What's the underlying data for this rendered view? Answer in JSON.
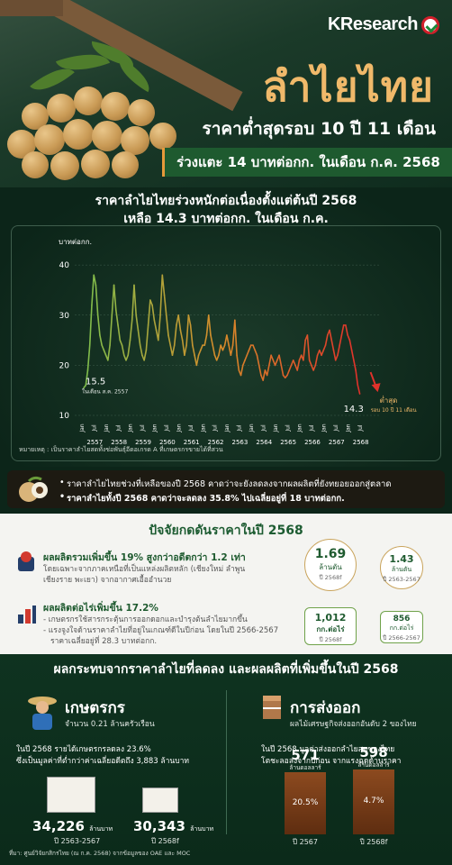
{
  "brand": {
    "name": "KResearch"
  },
  "header": {
    "title": "ลำไยไทย",
    "subtitle": "ราคาต่ำสุดรอบ 10 ปี 11 เดือน",
    "highlight": "ร่วงแตะ 14 บาทต่อกก. ในเดือน ก.ค. 2568"
  },
  "chart_section": {
    "heading_line1": "ราคาลำไยไทยร่วงหนักต่อเนื่องตั้งแต่ต้นปี 2568",
    "heading_line2": "เหลือ 14.3 บาทต่อกก. ในเดือน ก.ค.",
    "footnote": "หมายเหตุ : เป็นราคาลำไยสดทั้งช่อพันธุ์อีดอเกรด A ที่เกษตรกรขายได้ที่สวน"
  },
  "chart_data": {
    "type": "line",
    "ylabel": "บาทต่อกก.",
    "ylim": [
      10,
      42
    ],
    "yticks": [
      10,
      20,
      30,
      40
    ],
    "x_tick_labels": [
      "Jan",
      "Jul",
      "Jan",
      "Jul",
      "Jan",
      "Jul",
      "Jan",
      "Jul",
      "Jan",
      "Jul",
      "Jan",
      "Jul",
      "Jan",
      "Jul",
      "Jan",
      "Jul",
      "Jan",
      "Jul",
      "Jan",
      "Jul",
      "Jan",
      "Jul",
      "Jan",
      "Jul"
    ],
    "year_labels": [
      "2557",
      "2558",
      "2559",
      "2560",
      "2561",
      "2562",
      "2563",
      "2564",
      "2565",
      "2566",
      "2567",
      "2568"
    ],
    "series": [
      {
        "values": [
          15.5,
          16.0,
          19.0,
          24.0,
          32.0,
          38.0,
          36.0,
          30.0,
          26.0,
          24.0,
          23.0,
          22.0,
          21.0,
          24.0,
          30.0,
          36.0,
          31.0,
          28.0,
          25.0,
          24.0,
          22.0,
          21.0,
          22.0,
          25.0,
          29.0,
          36.0,
          30.0,
          27.0,
          24.0,
          22.0,
          21.0,
          23.0,
          28.0,
          33.0,
          32.0,
          29.0,
          27.0,
          25.0,
          30.0,
          38.0,
          34.0,
          30.0,
          26.0,
          24.0,
          22.0,
          24.0,
          28.0,
          30.0,
          27.0,
          25.0,
          22.0,
          24.0,
          30.0,
          28.0,
          24.0,
          22.0,
          20.0,
          22.0,
          23.0,
          24.0,
          24.0,
          26.0,
          30.0,
          26.0,
          24.0,
          22.0,
          21.0,
          22.0,
          24.0,
          23.0,
          24.0,
          26.0,
          24.0,
          22.0,
          24.0,
          29.0,
          22.0,
          19.0,
          18.0,
          20.0,
          21.0,
          22.0,
          23.0,
          24.0,
          24.0,
          23.0,
          22.0,
          20.0,
          18.0,
          17.0,
          19.0,
          18.0,
          20.0,
          22.0,
          21.0,
          20.0,
          21.0,
          22.0,
          20.0,
          18.0,
          17.5,
          18.0,
          19.0,
          20.0,
          21.0,
          20.0,
          19.0,
          21.0,
          22.0,
          21.0,
          25.0,
          26.0,
          21.0,
          20.0,
          19.0,
          20.0,
          22.0,
          23.0,
          22.0,
          23.0,
          24.0,
          26.0,
          27.0,
          25.0,
          23.0,
          21.0,
          22.0,
          24.0,
          26.0,
          28.0,
          28.0,
          26.0,
          25.0,
          23.0,
          21.0,
          19.0,
          16.0,
          14.3
        ]
      }
    ],
    "annotations": [
      {
        "label": "15.5",
        "sub": "ในเดือน ส.ค. 2557"
      },
      {
        "label": "14.3",
        "sub_line1": "ต่ำสุด",
        "sub_line2": "รอบ 10 ปี 11 เดือน"
      }
    ],
    "colors": {
      "start": "#7fbf4d",
      "mid": "#d88b2a",
      "end": "#e0322b"
    }
  },
  "bullets": [
    "ราคาลำไยไทยช่วงที่เหลือของปี 2568 คาดว่าจะยังลดลงจากผลผลิตที่ยังทยอยออกสู่ตลาด",
    "ราคาลำไยทั้งปี 2568 คาดว่าจะลดลง 35.8% ไปเฉลี่ยอยู่ที่ 18 บาทต่อกก."
  ],
  "factors": {
    "title": "ปัจจัยกดดันราคาในปี 2568",
    "item1": {
      "head": "ผลผลิตรวมเพิ่มขึ้น 19% สูงกว่าอดีตกว่า 1.2 เท่า",
      "text_line1": "โดยเฉพาะจากภาคเหนือที่เป็นแหล่งผลิตหลัก (เชียงใหม่ ลำพูน",
      "text_line2": "เชียงราย พะเยา) จากอากาศเอื้ออำนวย",
      "stat_main_value": "1.69",
      "stat_main_unit": "ล้านตัน",
      "stat_main_year": "ปี 2568f",
      "stat_avg_value": "1.43",
      "stat_avg_unit": "ล้านตัน",
      "stat_avg_year": "ปี 2563-2567"
    },
    "item2": {
      "head": "ผลผลิตต่อไร่เพิ่มขึ้น 17.2%",
      "text_line1": "- เกษตรกรใช้สารกระตุ้นการออกดอกและบำรุงต้นลำไยมากขึ้น",
      "text_line2": "- แรงจูงใจด้านราคาลำไยที่อยู่ในเกณฑ์ดีในปีก่อน โดยในปี 2566-2567",
      "text_line3": "ราคาเฉลี่ยอยู่ที่ 28.3 บาทต่อกก.",
      "stat_main_value": "1,012",
      "stat_main_unit": "กก.ต่อไร่",
      "stat_main_year": "ปี 2568f",
      "stat_avg_value": "856",
      "stat_avg_unit": "กก.ต่อไร่",
      "stat_avg_year": "ปี 2566-2567"
    }
  },
  "impact": {
    "title": "ผลกระทบจากราคาลำไยที่ลดลง และผลผลิตที่เพิ่มขึ้นในปี 2568",
    "farmers": {
      "head": "เกษตรกร",
      "sub": "จำนวน 0.21 ล้านครัวเรือน",
      "text_line1": "ในปี 2568 รายได้เกษตรกรลดลง 23.6%",
      "text_line2": "ซึ่งเป็นมูลค่าที่ต่ำกว่าค่าเฉลี่ยอดีตถึง 3,883 ล้านบาท",
      "value1": "34,226",
      "unit1": "ล้านบาท",
      "year1": "ปี 2563-2567",
      "value2": "30,343",
      "unit2": "ล้านบาท",
      "year2": "ปี 2568f"
    },
    "exports": {
      "head": "การส่งออก",
      "sub": "ผลไม้เศรษฐกิจส่งออกอันดับ 2 ของไทย",
      "text_line1": "ในปี 2568 มูลค่าส่งออกลำไยสดของไทย",
      "text_line2": "โตชะลอลงจากปีก่อน จากแรงฉุดด้านราคา",
      "value1": "571",
      "unit1": "ล้านดอลลาร์",
      "pct1": "20.5%",
      "year1": "ปี 2567",
      "value2": "598",
      "unit2": "ล้านดอลลาร์",
      "pct2": "4.7%",
      "year2": "ปี 2568f"
    },
    "source": "ที่มา: ศูนย์วิจัยกสิกรไทย (ณ ก.ค. 2568) จากข้อมูลของ OAE และ MOC"
  }
}
